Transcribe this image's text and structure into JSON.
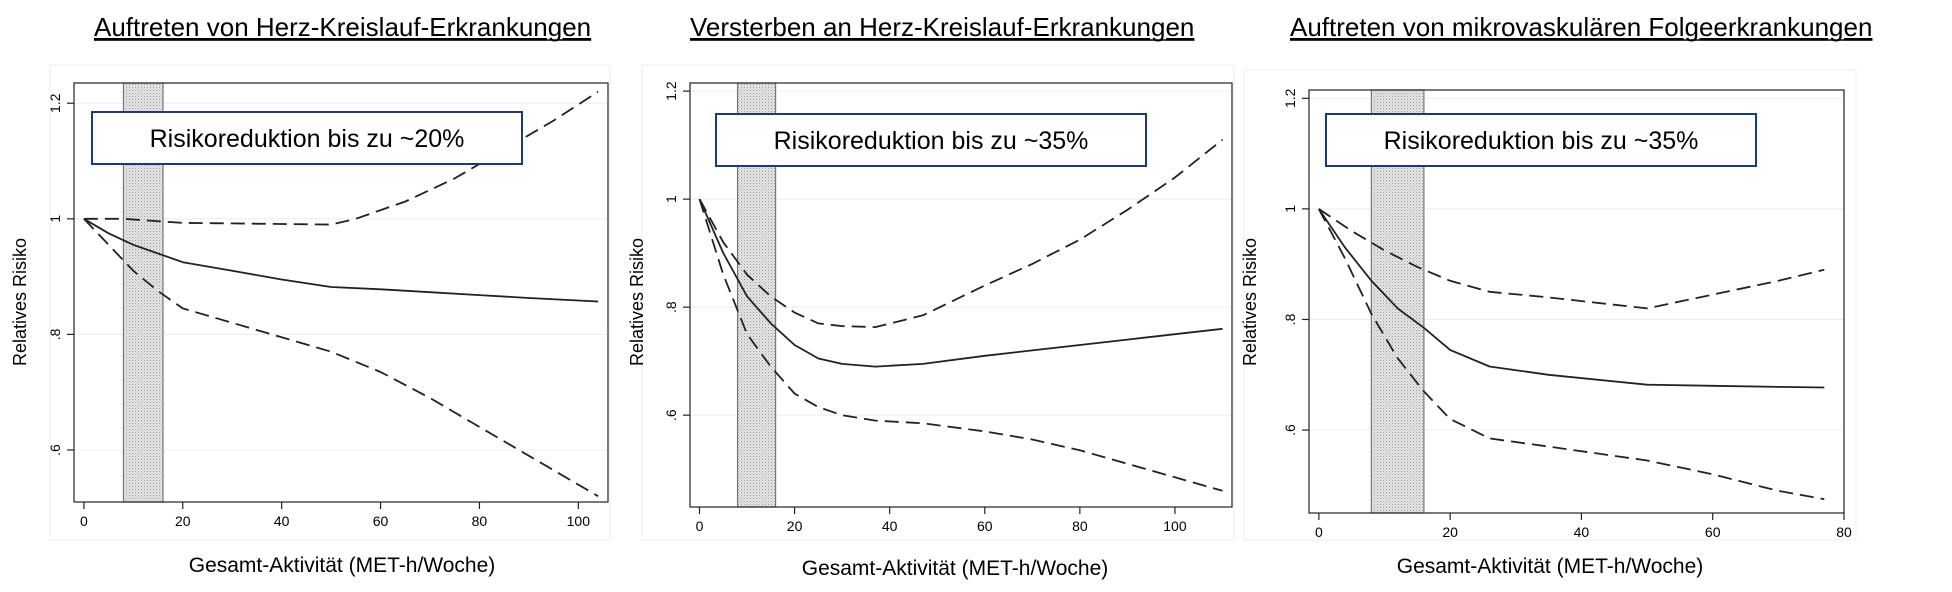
{
  "chart_data": [
    {
      "type": "line",
      "title": "Auftreten von Herz-Kreislauf-Erkrankungen",
      "xlabel": "Gesamt-Aktivität (MET-h/Woche)",
      "ylabel": "Relatives Risiko",
      "xlim": [
        -2,
        106
      ],
      "ylim": [
        0.51,
        1.235
      ],
      "x_ticks": [
        "0",
        "20",
        "40",
        "60",
        "80",
        "100"
      ],
      "y_ticks": [
        ".6",
        ".8",
        "1",
        "1.2"
      ],
      "annotation": "Risikoreduktion bis zu ~20%",
      "shaded_band": [
        8,
        16
      ],
      "series": [
        {
          "style": "solid",
          "x": [
            0,
            5,
            10,
            15,
            20,
            30,
            40,
            50,
            60,
            70,
            80,
            90,
            104
          ],
          "y": [
            1.0,
            0.975,
            0.955,
            0.94,
            0.925,
            0.91,
            0.895,
            0.882,
            0.878,
            0.873,
            0.868,
            0.863,
            0.857
          ]
        },
        {
          "style": "dashed",
          "x": [
            0,
            8,
            20,
            30,
            40,
            50,
            55,
            65,
            75,
            85,
            95,
            104
          ],
          "y": [
            1.0,
            1.0,
            0.993,
            0.992,
            0.991,
            0.99,
            1.0,
            1.03,
            1.07,
            1.12,
            1.17,
            1.22
          ]
        },
        {
          "style": "dashed",
          "x": [
            0,
            5,
            10,
            15,
            20,
            30,
            40,
            50,
            60,
            70,
            80,
            90,
            104
          ],
          "y": [
            1.0,
            0.955,
            0.91,
            0.875,
            0.845,
            0.82,
            0.795,
            0.77,
            0.735,
            0.69,
            0.64,
            0.59,
            0.52
          ]
        }
      ]
    },
    {
      "type": "line",
      "title": "Versterben an Herz-Kreislauf-Erkrankungen",
      "xlabel": "Gesamt-Aktivität (MET-h/Woche)",
      "ylabel": "Relatives Risiko",
      "xlim": [
        -2,
        112
      ],
      "ylim": [
        0.43,
        1.215
      ],
      "x_ticks": [
        "0",
        "20",
        "40",
        "60",
        "80",
        "100"
      ],
      "y_ticks": [
        ".6",
        ".8",
        "1",
        "1.2"
      ],
      "annotation": "Risikoreduktion bis zu ~35%",
      "shaded_band": [
        8,
        16
      ],
      "series": [
        {
          "style": "solid",
          "x": [
            0,
            5,
            10,
            15,
            20,
            25,
            30,
            37,
            47,
            60,
            70,
            80,
            90,
            100,
            110
          ],
          "y": [
            1.0,
            0.9,
            0.82,
            0.77,
            0.73,
            0.705,
            0.695,
            0.69,
            0.695,
            0.71,
            0.72,
            0.73,
            0.74,
            0.75,
            0.76
          ]
        },
        {
          "style": "dashed",
          "x": [
            0,
            5,
            10,
            15,
            20,
            25,
            30,
            37,
            47,
            60,
            70,
            80,
            90,
            100,
            110
          ],
          "y": [
            1.0,
            0.92,
            0.86,
            0.82,
            0.79,
            0.77,
            0.765,
            0.763,
            0.785,
            0.84,
            0.88,
            0.925,
            0.98,
            1.04,
            1.11
          ]
        },
        {
          "style": "dashed",
          "x": [
            0,
            5,
            10,
            15,
            20,
            25,
            30,
            37,
            47,
            60,
            70,
            80,
            90,
            100,
            110
          ],
          "y": [
            1.0,
            0.86,
            0.75,
            0.69,
            0.64,
            0.615,
            0.6,
            0.59,
            0.585,
            0.57,
            0.555,
            0.535,
            0.51,
            0.485,
            0.46
          ]
        }
      ]
    },
    {
      "type": "line",
      "title": "Auftreten von mikrovaskulären Folgeerkrankungen",
      "xlabel": "Gesamt-Aktivität (MET-h/Woche)",
      "ylabel": "Relatives Risiko",
      "xlim": [
        -1.5,
        80
      ],
      "ylim": [
        0.45,
        1.215
      ],
      "x_ticks": [
        "0",
        "20",
        "40",
        "60",
        "80"
      ],
      "y_ticks": [
        ".6",
        ".8",
        "1",
        "1.2"
      ],
      "annotation": "Risikoreduktion bis zu ~35%",
      "shaded_band": [
        8,
        16
      ],
      "series": [
        {
          "style": "solid",
          "x": [
            0,
            4,
            8,
            12,
            16,
            20,
            26,
            35,
            50,
            60,
            70,
            77
          ],
          "y": [
            1.0,
            0.93,
            0.87,
            0.82,
            0.785,
            0.745,
            0.715,
            0.7,
            0.682,
            0.68,
            0.678,
            0.677
          ]
        },
        {
          "style": "dashed",
          "x": [
            0,
            5,
            10,
            15,
            20,
            26,
            35,
            50,
            60,
            70,
            77
          ],
          "y": [
            1.0,
            0.96,
            0.925,
            0.895,
            0.87,
            0.85,
            0.84,
            0.82,
            0.845,
            0.87,
            0.89
          ]
        },
        {
          "style": "dashed",
          "x": [
            0,
            4,
            8,
            12,
            16,
            20,
            26,
            35,
            50,
            60,
            70,
            77
          ],
          "y": [
            1.0,
            0.91,
            0.81,
            0.73,
            0.67,
            0.62,
            0.585,
            0.57,
            0.545,
            0.52,
            0.49,
            0.475
          ]
        }
      ]
    }
  ]
}
